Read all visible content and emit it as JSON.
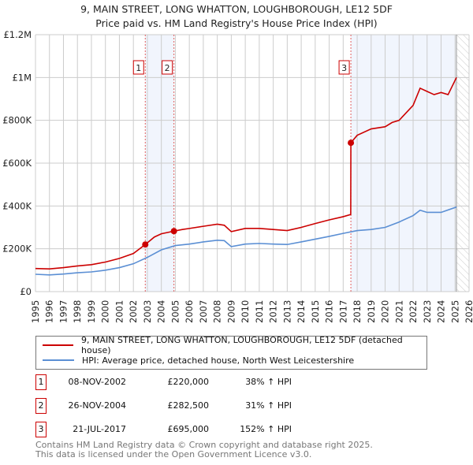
{
  "title": "9, MAIN STREET, LONG WHATTON, LOUGHBOROUGH, LE12 5DF",
  "subtitle": "Price paid vs. HM Land Registry's House Price Index (HPI)",
  "chart_data": {
    "type": "line",
    "xlim": [
      1995,
      2026
    ],
    "ylim": [
      0,
      1200000
    ],
    "yticks": [
      {
        "v": 0,
        "label": "£0"
      },
      {
        "v": 200000,
        "label": "£200K"
      },
      {
        "v": 400000,
        "label": "£400K"
      },
      {
        "v": 600000,
        "label": "£600K"
      },
      {
        "v": 800000,
        "label": "£800K"
      },
      {
        "v": 1000000,
        "label": "£1M"
      },
      {
        "v": 1200000,
        "label": "£1.2M"
      }
    ],
    "xticks": [
      "1995",
      "1996",
      "1997",
      "1998",
      "1999",
      "2000",
      "2001",
      "2002",
      "2003",
      "2004",
      "2005",
      "2006",
      "2007",
      "2008",
      "2009",
      "2010",
      "2011",
      "2012",
      "2013",
      "2014",
      "2015",
      "2016",
      "2017",
      "2018",
      "2019",
      "2020",
      "2021",
      "2022",
      "2023",
      "2024",
      "2025",
      "2026"
    ],
    "grid": true,
    "data_end": 2025.1,
    "shaded_ranges": [
      [
        2002.85,
        2004.9
      ],
      [
        2017.55,
        2025.1
      ]
    ],
    "series": [
      {
        "name": "9, MAIN STREET, LONG WHATTON, LOUGHBOROUGH, LE12 5DF (detached house)",
        "color": "#cc0000",
        "x": [
          1995,
          1996,
          1997,
          1998,
          1999,
          2000,
          2001,
          2002,
          2002.85,
          2003.5,
          2004,
          2004.9,
          2005.5,
          2006,
          2007,
          2008,
          2008.5,
          2009,
          2010,
          2011,
          2012,
          2013,
          2014,
          2015,
          2016,
          2017,
          2017.54,
          2017.55,
          2018,
          2019,
          2020,
          2020.5,
          2021,
          2022,
          2022.5,
          2023,
          2023.5,
          2024,
          2024.5,
          2025.1
        ],
        "y": [
          108000,
          106000,
          112000,
          120000,
          126000,
          138000,
          155000,
          178000,
          220000,
          255000,
          270000,
          282500,
          290000,
          295000,
          305000,
          315000,
          310000,
          280000,
          295000,
          295000,
          290000,
          285000,
          300000,
          318000,
          335000,
          350000,
          360000,
          695000,
          730000,
          760000,
          770000,
          790000,
          800000,
          870000,
          950000,
          935000,
          920000,
          930000,
          920000,
          1000000
        ]
      },
      {
        "name": "HPI: Average price, detached house, North West Leicestershire",
        "color": "#5b8fd4",
        "x": [
          1995,
          1996,
          1997,
          1998,
          1999,
          2000,
          2001,
          2002,
          2003,
          2004,
          2005,
          2006,
          2007,
          2008,
          2008.5,
          2009,
          2010,
          2011,
          2012,
          2013,
          2014,
          2015,
          2016,
          2017,
          2018,
          2019,
          2020,
          2021,
          2022,
          2022.5,
          2023,
          2024,
          2025.1
        ],
        "y": [
          81000,
          78000,
          82000,
          88000,
          92000,
          100000,
          112000,
          130000,
          160000,
          195000,
          215000,
          222000,
          232000,
          240000,
          238000,
          210000,
          222000,
          225000,
          222000,
          220000,
          232000,
          245000,
          258000,
          272000,
          285000,
          290000,
          300000,
          325000,
          355000,
          380000,
          370000,
          370000,
          395000
        ]
      }
    ],
    "sales": [
      {
        "label": "1",
        "x": 2002.85,
        "y": 220000,
        "date": "08-NOV-2002",
        "price": "£220,000",
        "hpi": "38% ↑ HPI"
      },
      {
        "label": "2",
        "x": 2004.9,
        "y": 282500,
        "date": "26-NOV-2004",
        "price": "£282,500",
        "hpi": "31% ↑ HPI"
      },
      {
        "label": "3",
        "x": 2017.55,
        "y": 695000,
        "date": "21-JUL-2017",
        "price": "£695,000",
        "hpi": "152% ↑ HPI"
      }
    ]
  },
  "footer": [
    "Contains HM Land Registry data © Crown copyright and database right 2025.",
    "This data is licensed under the Open Government Licence v3.0."
  ]
}
